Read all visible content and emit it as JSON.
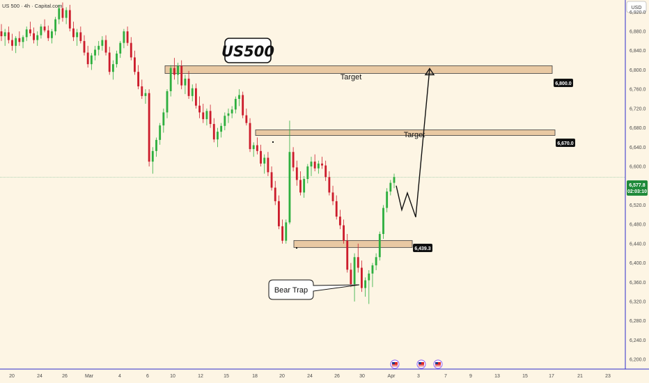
{
  "header": {
    "symbol_line": "US 500 · 4h · Capital.com"
  },
  "currency": "USD",
  "big_label": "US500",
  "annotations": {
    "target_upper": "Target",
    "target_lower": "Target",
    "bear_trap": "Bear Trap"
  },
  "price_badges": {
    "level_6800": "6,800.0",
    "level_6670": "6,670.0",
    "level_6439": "6,439.3",
    "current_price": "6,577.8",
    "countdown": "02:03:10"
  },
  "colors": {
    "background": "#fdf5e4",
    "up": "#089981",
    "up_bright": "#2eaf3f",
    "down": "#cc1c2c",
    "zone_fill": "#e9c9a3",
    "zone_stroke": "#3b3b3b",
    "axis_line": "#2b2bcc",
    "price_badge": "#1f8a3a",
    "level_badge": "#111111"
  },
  "chart_data": {
    "type": "candlestick",
    "y_ticks": [
      "6,920.0",
      "6,880.0",
      "6,840.0",
      "6,800.0",
      "6,760.0",
      "6,720.0",
      "6,680.0",
      "6,640.0",
      "6,600.0",
      "6,560.0",
      "6,520.0",
      "6,480.0",
      "6,440.0",
      "6,400.0",
      "6,360.0",
      "6,320.0",
      "6,280.0",
      "6,240.0",
      "6,200.0"
    ],
    "x_ticks": [
      "20",
      "24",
      "26",
      "Mar",
      "4",
      "6",
      "10",
      "12",
      "15",
      "18",
      "20",
      "24",
      "26",
      "30",
      "Apr",
      "3",
      "7",
      "9",
      "13",
      "15",
      "17",
      "21",
      "23"
    ],
    "ylim": [
      6180,
      6945
    ],
    "levels": [
      6800.0,
      6670.0,
      6439.3
    ],
    "current_price": 6577.8,
    "projection": [
      [
        6565,
        6560
      ],
      [
        6574,
        6510
      ],
      [
        6582,
        6545
      ],
      [
        6592,
        6495
      ],
      [
        6617,
        6803
      ]
    ],
    "candles": [
      [
        6880,
        6895,
        6860,
        6870
      ],
      [
        6870,
        6885,
        6850,
        6878
      ],
      [
        6878,
        6890,
        6855,
        6862
      ],
      [
        6862,
        6875,
        6840,
        6850
      ],
      [
        6850,
        6870,
        6835,
        6866
      ],
      [
        6866,
        6880,
        6850,
        6858
      ],
      [
        6858,
        6872,
        6845,
        6868
      ],
      [
        6868,
        6890,
        6860,
        6884
      ],
      [
        6884,
        6900,
        6870,
        6876
      ],
      [
        6876,
        6888,
        6855,
        6862
      ],
      [
        6862,
        6880,
        6850,
        6872
      ],
      [
        6872,
        6895,
        6865,
        6890
      ],
      [
        6890,
        6905,
        6878,
        6882
      ],
      [
        6882,
        6892,
        6860,
        6866
      ],
      [
        6866,
        6885,
        6855,
        6880
      ],
      [
        6880,
        6910,
        6872,
        6905
      ],
      [
        6905,
        6935,
        6895,
        6928
      ],
      [
        6928,
        6940,
        6900,
        6908
      ],
      [
        6908,
        6930,
        6895,
        6924
      ],
      [
        6924,
        6935,
        6880,
        6886
      ],
      [
        6886,
        6900,
        6860,
        6868
      ],
      [
        6868,
        6885,
        6850,
        6878
      ],
      [
        6878,
        6890,
        6855,
        6860
      ],
      [
        6860,
        6872,
        6830,
        6836
      ],
      [
        6836,
        6850,
        6805,
        6812
      ],
      [
        6812,
        6835,
        6800,
        6830
      ],
      [
        6830,
        6850,
        6820,
        6842
      ],
      [
        6842,
        6860,
        6830,
        6850
      ],
      [
        6850,
        6870,
        6840,
        6862
      ],
      [
        6862,
        6872,
        6830,
        6836
      ],
      [
        6836,
        6848,
        6790,
        6796
      ],
      [
        6796,
        6820,
        6780,
        6812
      ],
      [
        6812,
        6840,
        6805,
        6834
      ],
      [
        6834,
        6860,
        6825,
        6856
      ],
      [
        6856,
        6885,
        6845,
        6880
      ],
      [
        6880,
        6890,
        6850,
        6856
      ],
      [
        6856,
        6868,
        6820,
        6826
      ],
      [
        6826,
        6840,
        6790,
        6796
      ],
      [
        6796,
        6810,
        6760,
        6766
      ],
      [
        6766,
        6780,
        6740,
        6746
      ],
      [
        6746,
        6760,
        6730,
        6752
      ],
      [
        6752,
        6760,
        6600,
        6610
      ],
      [
        6610,
        6640,
        6585,
        6632
      ],
      [
        6632,
        6660,
        6620,
        6655
      ],
      [
        6655,
        6690,
        6645,
        6685
      ],
      [
        6685,
        6720,
        6670,
        6712
      ],
      [
        6712,
        6760,
        6700,
        6756
      ],
      [
        6756,
        6810,
        6745,
        6804
      ],
      [
        6804,
        6825,
        6780,
        6790
      ],
      [
        6790,
        6815,
        6770,
        6808
      ],
      [
        6808,
        6820,
        6760,
        6768
      ],
      [
        6768,
        6790,
        6750,
        6782
      ],
      [
        6782,
        6798,
        6740,
        6746
      ],
      [
        6746,
        6770,
        6735,
        6762
      ],
      [
        6762,
        6772,
        6720,
        6726
      ],
      [
        6726,
        6745,
        6700,
        6712
      ],
      [
        6712,
        6730,
        6690,
        6698
      ],
      [
        6698,
        6720,
        6685,
        6715
      ],
      [
        6715,
        6728,
        6680,
        6688
      ],
      [
        6688,
        6700,
        6650,
        6656
      ],
      [
        6656,
        6680,
        6640,
        6672
      ],
      [
        6672,
        6690,
        6660,
        6684
      ],
      [
        6684,
        6712,
        6675,
        6705
      ],
      [
        6705,
        6720,
        6690,
        6710
      ],
      [
        6710,
        6725,
        6700,
        6718
      ],
      [
        6718,
        6745,
        6710,
        6740
      ],
      [
        6740,
        6760,
        6725,
        6748
      ],
      [
        6748,
        6755,
        6700,
        6706
      ],
      [
        6706,
        6720,
        6685,
        6690
      ],
      [
        6690,
        6700,
        6630,
        6636
      ],
      [
        6636,
        6650,
        6620,
        6644
      ],
      [
        6644,
        6660,
        6625,
        6632
      ],
      [
        6632,
        6645,
        6600,
        6606
      ],
      [
        6606,
        6625,
        6585,
        6618
      ],
      [
        6618,
        6630,
        6580,
        6588
      ],
      [
        6588,
        6600,
        6550,
        6556
      ],
      [
        6556,
        6570,
        6520,
        6528
      ],
      [
        6528,
        6540,
        6470,
        6476
      ],
      [
        6476,
        6490,
        6440,
        6446
      ],
      [
        6446,
        6490,
        6440,
        6484
      ],
      [
        6484,
        6695,
        6480,
        6630
      ],
      [
        6630,
        6640,
        6590,
        6598
      ],
      [
        6598,
        6612,
        6560,
        6572
      ],
      [
        6572,
        6590,
        6540,
        6546
      ],
      [
        6546,
        6580,
        6535,
        6574
      ],
      [
        6574,
        6605,
        6565,
        6600
      ],
      [
        6600,
        6620,
        6580,
        6610
      ],
      [
        6610,
        6625,
        6590,
        6596
      ],
      [
        6596,
        6612,
        6585,
        6606
      ],
      [
        6606,
        6620,
        6595,
        6602
      ],
      [
        6602,
        6612,
        6570,
        6578
      ],
      [
        6578,
        6590,
        6540,
        6546
      ],
      [
        6546,
        6560,
        6520,
        6528
      ],
      [
        6528,
        6540,
        6490,
        6496
      ],
      [
        6496,
        6510,
        6470,
        6478
      ],
      [
        6478,
        6490,
        6440,
        6446
      ],
      [
        6446,
        6460,
        6380,
        6386
      ],
      [
        6386,
        6400,
        6350,
        6356
      ],
      [
        6356,
        6420,
        6320,
        6412
      ],
      [
        6412,
        6440,
        6380,
        6390
      ],
      [
        6390,
        6405,
        6340,
        6348
      ],
      [
        6348,
        6370,
        6330,
        6364
      ],
      [
        6364,
        6385,
        6315,
        6378
      ],
      [
        6378,
        6400,
        6350,
        6395
      ],
      [
        6395,
        6420,
        6385,
        6412
      ],
      [
        6412,
        6465,
        6405,
        6460
      ],
      [
        6460,
        6520,
        6450,
        6514
      ],
      [
        6514,
        6555,
        6505,
        6548
      ],
      [
        6548,
        6572,
        6540,
        6566
      ],
      [
        6566,
        6585,
        6555,
        6578
      ]
    ]
  }
}
